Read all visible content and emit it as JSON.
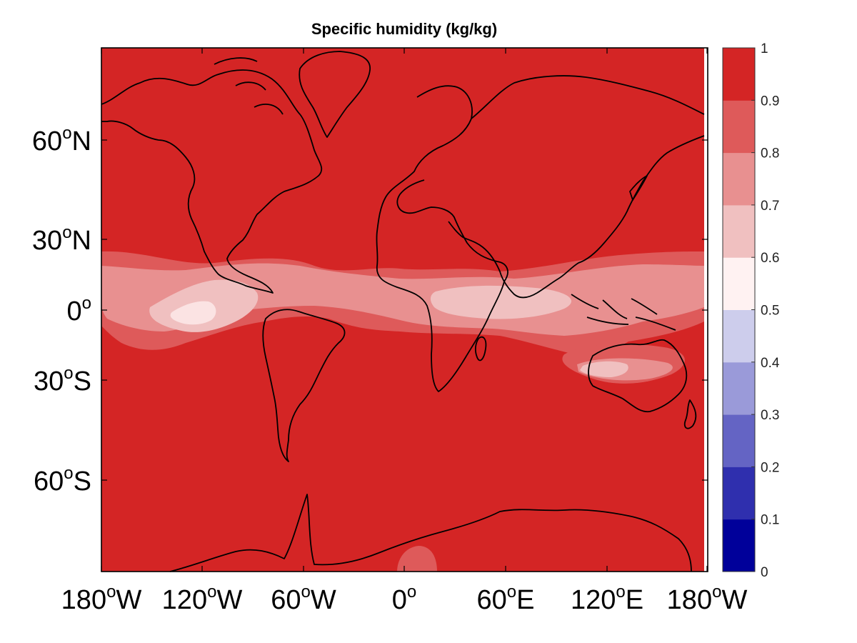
{
  "title": "Specific humidity (kg/kg)",
  "map": {
    "lon_ticks": [
      {
        "deg": "180",
        "hem": "W"
      },
      {
        "deg": "120",
        "hem": "W"
      },
      {
        "deg": "60",
        "hem": "W"
      },
      {
        "deg": "0",
        "hem": ""
      },
      {
        "deg": "60",
        "hem": "E"
      },
      {
        "deg": "120",
        "hem": "E"
      },
      {
        "deg": "180",
        "hem": "W"
      }
    ],
    "lat_ticks": [
      {
        "deg": "60",
        "hem": "N"
      },
      {
        "deg": "30",
        "hem": "N"
      },
      {
        "deg": "0",
        "hem": ""
      },
      {
        "deg": "30",
        "hem": "S"
      },
      {
        "deg": "60",
        "hem": "S"
      }
    ],
    "degree_symbol": "o",
    "background_value_band": "0.9-1",
    "humidity_field": [
      {
        "region": "tropical band (15N-15S, all longitudes)",
        "level": "0.8-0.9"
      },
      {
        "region": "eastern Pacific near 0, 120W",
        "level": "0.7-0.8"
      },
      {
        "region": "eastern Pacific core",
        "level": "0.6-0.7"
      },
      {
        "region": "central Africa / Indian Ocean near 0-10N",
        "level": "0.6-0.7"
      },
      {
        "region": "northern Australia near 25S",
        "level": "0.6-0.7"
      },
      {
        "region": "Antarctic patch near 0-15E",
        "level": "0.8-0.9"
      }
    ]
  },
  "colorbar": {
    "levels": [
      "0",
      "0.1",
      "0.2",
      "0.3",
      "0.4",
      "0.5",
      "0.6",
      "0.7",
      "0.8",
      "0.9",
      "1"
    ],
    "colors": [
      "#00009a",
      "#2f2fae",
      "#6464c4",
      "#9a9ad9",
      "#cdcdec",
      "#fff2f2",
      "#f0c0c0",
      "#e89090",
      "#de5a5a",
      "#d42525"
    ]
  }
}
